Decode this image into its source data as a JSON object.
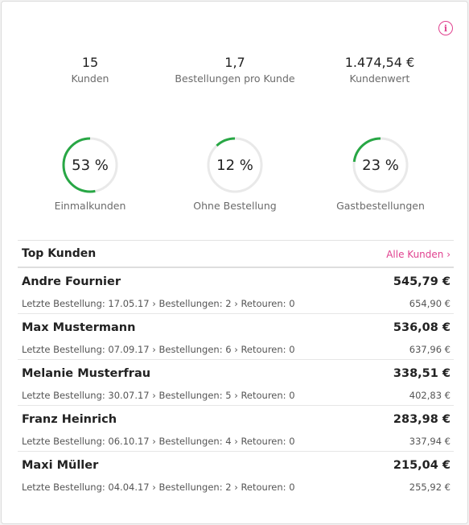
{
  "info_icon": "i",
  "stats": [
    {
      "value": "15",
      "label": "Kunden"
    },
    {
      "value": "1,7",
      "label": "Bestellungen pro Kunde"
    },
    {
      "value": "1.474,54 €",
      "label": "Kundenwert"
    }
  ],
  "donuts": [
    {
      "percent": 53,
      "text": "53 %",
      "label": "Einmalkunden"
    },
    {
      "percent": 12,
      "text": "12 %",
      "label": "Ohne Bestellung"
    },
    {
      "percent": 23,
      "text": "23 %",
      "label": "Gastbestellungen"
    }
  ],
  "colors": {
    "accent": "#e0418f",
    "ring": "#28a745",
    "track": "#e9e9e9"
  },
  "top": {
    "title": "Top Kunden",
    "link": "Alle Kunden ›",
    "customers": [
      {
        "name": "Andre Fournier",
        "amount": "545,79 €",
        "meta": "Letzte Bestellung: 17.05.17 › Bestellungen: 2 › Retouren: 0",
        "sub": "654,90 €"
      },
      {
        "name": "Max Mustermann",
        "amount": "536,08 €",
        "meta": "Letzte Bestellung: 07.09.17 › Bestellungen: 6 › Retouren: 0",
        "sub": "637,96 €"
      },
      {
        "name": "Melanie Musterfrau",
        "amount": "338,51 €",
        "meta": "Letzte Bestellung: 30.07.17 › Bestellungen: 5 › Retouren: 0",
        "sub": "402,83 €"
      },
      {
        "name": "Franz Heinrich",
        "amount": "283,98 €",
        "meta": "Letzte Bestellung: 06.10.17 › Bestellungen: 4 › Retouren: 0",
        "sub": "337,94 €"
      },
      {
        "name": "Maxi Müller",
        "amount": "215,04 €",
        "meta": "Letzte Bestellung: 04.04.17 › Bestellungen: 2 › Retouren: 0",
        "sub": "255,92 €"
      }
    ]
  }
}
